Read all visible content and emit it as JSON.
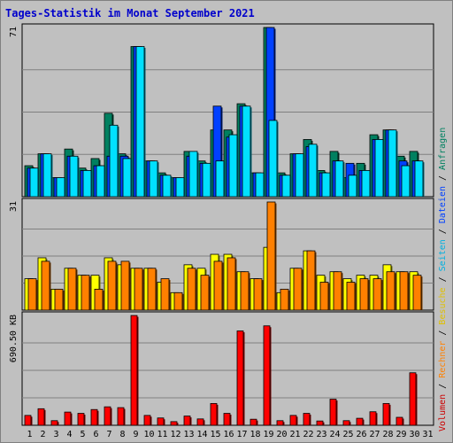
{
  "chart_data": {
    "type": "bar",
    "title": "Tages-Statistik im Monat September 2021",
    "days": [
      "1",
      "2",
      "3",
      "4",
      "5",
      "6",
      "7",
      "8",
      "9",
      "10",
      "11",
      "12",
      "13",
      "14",
      "15",
      "16",
      "17",
      "18",
      "19",
      "20",
      "21",
      "22",
      "23",
      "24",
      "25",
      "26",
      "27",
      "28",
      "29",
      "30",
      "31"
    ],
    "weekend_days": [
      "4",
      "5",
      "11",
      "12",
      "18",
      "19",
      "25",
      "26"
    ],
    "panels": [
      {
        "name": "top",
        "max_label": "71",
        "max": 71,
        "series": [
          {
            "name": "Anfragen",
            "color": "#008060",
            "values": [
              13,
              18,
              8,
              20,
              12,
              16,
              35,
              18,
              63,
              15,
              10,
              8,
              19,
              15,
              28,
              28,
              39,
              10,
              71,
              10,
              18,
              24,
              11,
              19,
              8,
              14,
              26,
              28,
              17,
              19,
              0
            ]
          },
          {
            "name": "Dateien",
            "color": "#0040ff",
            "values": [
              12,
              18,
              8,
              17,
              11,
              13,
              17,
              17,
              63,
              15,
              9,
              8,
              17,
              14,
              38,
              25,
              38,
              10,
              71,
              9,
              18,
              21,
              10,
              15,
              14,
              11,
              24,
              28,
              15,
              15,
              0
            ]
          },
          {
            "name": "Seiten",
            "color": "#00e0ff",
            "values": [
              12,
              18,
              8,
              17,
              11,
              13,
              30,
              16,
              63,
              15,
              9,
              8,
              19,
              14,
              15,
              26,
              38,
              10,
              32,
              9,
              18,
              22,
              10,
              15,
              9,
              11,
              24,
              28,
              13,
              15,
              0
            ]
          }
        ]
      },
      {
        "name": "middle",
        "max_label": "31",
        "max": 31,
        "series": [
          {
            "name": "Besuche",
            "color": "#ffff00",
            "values": [
              9,
              15,
              6,
              12,
              10,
              10,
              15,
              13,
              12,
              12,
              8,
              5,
              13,
              12,
              16,
              16,
              11,
              9,
              18,
              5,
              12,
              17,
              10,
              11,
              9,
              10,
              10,
              13,
              11,
              11,
              0
            ]
          },
          {
            "name": "Rechner",
            "color": "#ff8000",
            "values": [
              9,
              14,
              6,
              12,
              10,
              6,
              14,
              14,
              12,
              12,
              9,
              5,
              12,
              10,
              14,
              15,
              11,
              9,
              31,
              6,
              12,
              17,
              8,
              11,
              8,
              9,
              9,
              11,
              11,
              10,
              0
            ]
          }
        ]
      },
      {
        "name": "bottom",
        "max_label": "690.50 KB",
        "max": 690.5,
        "series": [
          {
            "name": "Volumen",
            "color": "#ff0000",
            "values": [
              62,
              104,
              29,
              83,
              75,
              99,
              116,
              111,
              690,
              62,
              46,
              23,
              58,
              40,
              137,
              75,
              593,
              38,
              625,
              29,
              62,
              75,
              27,
              164,
              29,
              44,
              85,
              137,
              50,
              330,
              0
            ]
          }
        ]
      }
    ],
    "legend": [
      {
        "text": "Volumen",
        "color": "#cc0000"
      },
      {
        "text": "/",
        "color": "#000000"
      },
      {
        "text": "Rechner",
        "color": "#ff8000"
      },
      {
        "text": "/",
        "color": "#000000"
      },
      {
        "text": "Besuche",
        "color": "#e0c000"
      },
      {
        "text": "/",
        "color": "#000000"
      },
      {
        "text": "Seiten",
        "color": "#00b0e0"
      },
      {
        "text": "/",
        "color": "#000000"
      },
      {
        "text": "Dateien",
        "color": "#0040ff"
      },
      {
        "text": "/",
        "color": "#000000"
      },
      {
        "text": "Anfragen",
        "color": "#008060"
      }
    ]
  }
}
